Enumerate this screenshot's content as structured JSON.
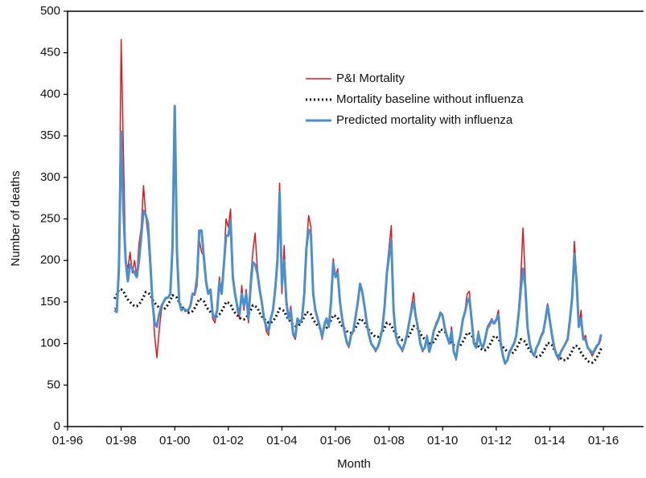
{
  "chart_data": {
    "type": "line",
    "xlabel": "Month",
    "ylabel": "Number of deaths",
    "x": [
      "10-97",
      "11-97",
      "12-97",
      "01-98",
      "02-98",
      "03-98",
      "04-98",
      "05-98",
      "06-98",
      "07-98",
      "08-98",
      "09-98",
      "10-98",
      "11-98",
      "12-98",
      "01-99",
      "02-99",
      "03-99",
      "04-99",
      "05-99",
      "06-99",
      "07-99",
      "08-99",
      "09-99",
      "10-99",
      "11-99",
      "12-99",
      "01-00",
      "02-00",
      "03-00",
      "04-00",
      "05-00",
      "06-00",
      "07-00",
      "08-00",
      "09-00",
      "10-00",
      "11-00",
      "12-00",
      "01-01",
      "02-01",
      "03-01",
      "04-01",
      "05-01",
      "06-01",
      "07-01",
      "08-01",
      "09-01",
      "10-01",
      "11-01",
      "12-01",
      "01-02",
      "02-02",
      "03-02",
      "04-02",
      "05-02",
      "06-02",
      "07-02",
      "08-02",
      "09-02",
      "10-02",
      "11-02",
      "12-02",
      "01-03",
      "02-03",
      "03-03",
      "04-03",
      "05-03",
      "06-03",
      "07-03",
      "08-03",
      "09-03",
      "10-03",
      "11-03",
      "12-03",
      "01-04",
      "02-04",
      "03-04",
      "04-04",
      "05-04",
      "06-04",
      "07-04",
      "08-04",
      "09-04",
      "10-04",
      "11-04",
      "12-04",
      "01-05",
      "02-05",
      "03-05",
      "04-05",
      "05-05",
      "06-05",
      "07-05",
      "08-05",
      "09-05",
      "10-05",
      "11-05",
      "12-05",
      "01-06",
      "02-06",
      "03-06",
      "04-06",
      "05-06",
      "06-06",
      "07-06",
      "08-06",
      "09-06",
      "10-06",
      "11-06",
      "12-06",
      "01-07",
      "02-07",
      "03-07",
      "04-07",
      "05-07",
      "06-07",
      "07-07",
      "08-07",
      "09-07",
      "10-07",
      "11-07",
      "12-07",
      "01-08",
      "02-08",
      "03-08",
      "04-08",
      "05-08",
      "06-08",
      "07-08",
      "08-08",
      "09-08",
      "10-08",
      "11-08",
      "12-08",
      "01-09",
      "02-09",
      "03-09",
      "04-09",
      "05-09",
      "06-09",
      "07-09",
      "08-09",
      "09-09",
      "10-09",
      "11-09",
      "12-09",
      "01-10",
      "02-10",
      "03-10",
      "04-10",
      "05-10",
      "06-10",
      "07-10",
      "08-10",
      "09-10",
      "10-10",
      "11-10",
      "12-10",
      "01-11",
      "02-11",
      "03-11",
      "04-11",
      "05-11",
      "06-11",
      "07-11",
      "08-11",
      "09-11",
      "10-11",
      "11-11",
      "12-11",
      "01-12",
      "02-12",
      "03-12",
      "04-12",
      "05-12",
      "06-12",
      "07-12",
      "08-12",
      "09-12",
      "10-12",
      "11-12",
      "12-12",
      "01-13",
      "02-13",
      "03-13",
      "04-13",
      "05-13",
      "06-13",
      "07-13",
      "08-13",
      "09-13",
      "10-13",
      "11-13",
      "12-13",
      "01-14",
      "02-14",
      "03-14",
      "04-14",
      "05-14",
      "06-14",
      "07-14",
      "08-14",
      "09-14",
      "10-14",
      "11-14",
      "12-14",
      "01-15",
      "02-15",
      "03-15",
      "04-15",
      "05-15",
      "06-15",
      "07-15",
      "08-15",
      "09-15",
      "10-15",
      "11-15",
      "12-15"
    ],
    "series": [
      {
        "name": "P&I Mortality",
        "color": "#e8141c",
        "width": 1.5,
        "style": "solid",
        "values": [
          143,
          140,
          200,
          466,
          330,
          200,
          190,
          210,
          185,
          200,
          180,
          220,
          240,
          290,
          255,
          230,
          190,
          150,
          110,
          83,
          115,
          140,
          150,
          155,
          155,
          160,
          210,
          386,
          200,
          150,
          140,
          142,
          140,
          138,
          145,
          160,
          158,
          170,
          225,
          210,
          205,
          170,
          160,
          165,
          130,
          125,
          140,
          180,
          160,
          200,
          250,
          240,
          262,
          180,
          160,
          140,
          130,
          170,
          140,
          165,
          125,
          180,
          210,
          233,
          190,
          170,
          150,
          130,
          115,
          110,
          130,
          140,
          170,
          210,
          293,
          160,
          218,
          150,
          130,
          145,
          110,
          105,
          130,
          125,
          130,
          160,
          220,
          254,
          240,
          160,
          140,
          130,
          120,
          105,
          125,
          130,
          120,
          150,
          202,
          180,
          190,
          150,
          130,
          115,
          100,
          95,
          110,
          115,
          135,
          150,
          172,
          165,
          145,
          125,
          110,
          100,
          95,
          90,
          95,
          105,
          120,
          150,
          190,
          215,
          242,
          140,
          110,
          100,
          95,
          90,
          100,
          110,
          125,
          145,
          161,
          135,
          120,
          100,
          90,
          95,
          110,
          90,
          100,
          115,
          125,
          130,
          138,
          135,
          120,
          110,
          100,
          120,
          90,
          80,
          100,
          110,
          130,
          140,
          160,
          163,
          130,
          100,
          95,
          115,
          100,
          95,
          105,
          120,
          125,
          130,
          125,
          130,
          140,
          100,
          85,
          75,
          80,
          90,
          95,
          100,
          110,
          140,
          180,
          239,
          180,
          120,
          100,
          90,
          85,
          95,
          100,
          110,
          115,
          130,
          148,
          130,
          110,
          95,
          85,
          80,
          90,
          95,
          100,
          105,
          130,
          160,
          223,
          180,
          120,
          140,
          105,
          110,
          95,
          90,
          85,
          90,
          95,
          100,
          105
        ]
      },
      {
        "name": "Mortality baseline without influenza",
        "color": "#111111",
        "width": 3,
        "style": "dotted",
        "values": [
          154,
          159,
          165,
          165,
          163,
          157,
          153,
          150,
          147,
          145,
          145,
          147,
          151,
          156,
          162,
          161,
          159,
          153,
          149,
          146,
          143,
          141,
          141,
          143,
          147,
          152,
          158,
          157,
          155,
          149,
          145,
          142,
          139,
          137,
          137,
          139,
          143,
          148,
          154,
          153,
          151,
          145,
          141,
          138,
          135,
          133,
          133,
          135,
          139,
          144,
          150,
          149,
          147,
          141,
          137,
          134,
          131,
          129,
          129,
          131,
          135,
          140,
          146,
          145,
          143,
          137,
          133,
          130,
          127,
          125,
          125,
          127,
          131,
          136,
          142,
          141,
          139,
          133,
          129,
          126,
          123,
          121,
          121,
          123,
          127,
          132,
          138,
          137,
          135,
          129,
          125,
          122,
          119,
          117,
          117,
          119,
          123,
          128,
          134,
          133,
          131,
          125,
          121,
          118,
          115,
          113,
          113,
          115,
          119,
          124,
          130,
          128,
          126,
          120,
          116,
          113,
          110,
          108,
          108,
          110,
          114,
          119,
          125,
          124,
          122,
          116,
          112,
          109,
          106,
          104,
          104,
          106,
          110,
          115,
          121,
          120,
          118,
          112,
          108,
          105,
          102,
          100,
          100,
          102,
          106,
          111,
          117,
          116,
          114,
          108,
          104,
          101,
          98,
          96,
          96,
          98,
          102,
          107,
          113,
          112,
          110,
          104,
          100,
          97,
          94,
          92,
          92,
          94,
          98,
          103,
          109,
          108,
          106,
          100,
          96,
          93,
          90,
          88,
          88,
          90,
          94,
          99,
          105,
          104,
          102,
          96,
          92,
          89,
          86,
          84,
          84,
          86,
          90,
          95,
          101,
          100,
          98,
          92,
          88,
          85,
          82,
          80,
          80,
          82,
          86,
          91,
          97,
          97,
          95,
          89,
          85,
          82,
          79,
          77,
          77,
          79,
          83,
          88,
          94
        ]
      },
      {
        "name": "Predicted mortality with influenza",
        "color": "#4a8fd0",
        "width": 3,
        "style": "solid",
        "values": [
          140,
          138,
          190,
          355,
          260,
          200,
          175,
          195,
          190,
          185,
          180,
          200,
          230,
          260,
          255,
          245,
          200,
          150,
          125,
          120,
          135,
          145,
          150,
          155,
          155,
          160,
          215,
          386,
          210,
          150,
          140,
          142,
          140,
          140,
          145,
          160,
          160,
          180,
          236,
          236,
          205,
          175,
          160,
          165,
          135,
          130,
          140,
          175,
          160,
          195,
          230,
          230,
          248,
          180,
          160,
          145,
          135,
          160,
          145,
          160,
          130,
          170,
          198,
          195,
          185,
          165,
          150,
          130,
          120,
          115,
          130,
          140,
          165,
          200,
          282,
          170,
          200,
          150,
          130,
          140,
          112,
          108,
          130,
          125,
          130,
          160,
          215,
          237,
          232,
          160,
          140,
          130,
          120,
          108,
          122,
          130,
          120,
          150,
          197,
          180,
          185,
          150,
          130,
          115,
          102,
          97,
          110,
          115,
          132,
          150,
          172,
          162,
          145,
          125,
          110,
          100,
          96,
          92,
          96,
          105,
          118,
          145,
          185,
          205,
          225,
          140,
          110,
          100,
          96,
          92,
          100,
          110,
          125,
          140,
          150,
          132,
          118,
          100,
          92,
          95,
          108,
          90,
          100,
          115,
          122,
          128,
          137,
          133,
          118,
          108,
          100,
          115,
          90,
          82,
          100,
          110,
          128,
          138,
          150,
          155,
          128,
          100,
          95,
          112,
          100,
          95,
          105,
          118,
          122,
          128,
          124,
          128,
          135,
          100,
          85,
          76,
          80,
          90,
          95,
          100,
          110,
          135,
          165,
          190,
          170,
          120,
          100,
          90,
          85,
          95,
          100,
          108,
          113,
          128,
          146,
          128,
          110,
          95,
          86,
          82,
          90,
          95,
          100,
          105,
          128,
          155,
          208,
          175,
          120,
          130,
          105,
          105,
          95,
          92,
          88,
          92,
          97,
          100,
          111
        ]
      }
    ],
    "xlim": [
      "01-96",
      "07-17"
    ],
    "xticks": [
      "01-96",
      "01-98",
      "01-00",
      "01-02",
      "01-04",
      "01-06",
      "01-08",
      "01-10",
      "01-12",
      "01-14",
      "01-16"
    ],
    "ylim": [
      0,
      500
    ],
    "yticks": [
      0,
      50,
      100,
      150,
      200,
      250,
      300,
      350,
      400,
      450,
      500
    ],
    "grid": false,
    "legend": "top"
  }
}
